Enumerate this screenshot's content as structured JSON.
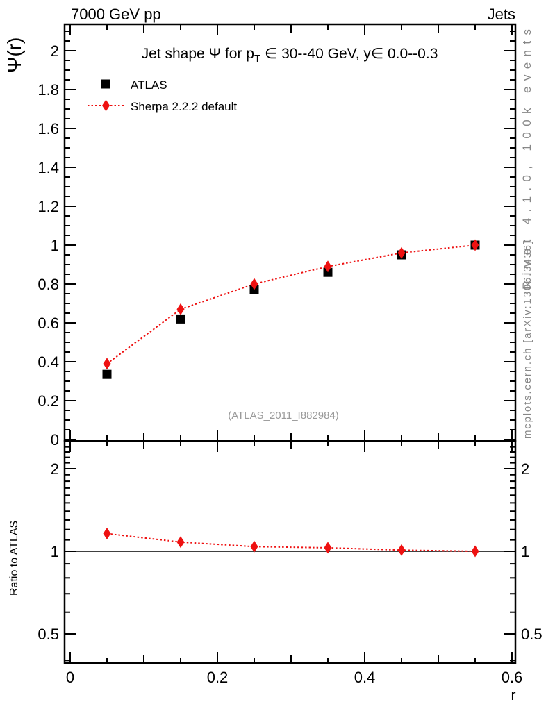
{
  "colors": {
    "red": "#ee1111",
    "black": "#000000",
    "gray_text": "#878787",
    "watermark": "#9a9a9a",
    "background": "#ffffff"
  },
  "header": {
    "left": "7000 GeV pp",
    "right": "Jets"
  },
  "side_notes": {
    "top_right": "Rivet 4.1.0,  100k events",
    "bottom_right": "mcplots.cern.ch [arXiv:1306.3436]"
  },
  "main_panel": {
    "ylabel": "Ψ(r)",
    "title_pre": "Jet shape Ψ for p",
    "title_sub": "T",
    "title_post": " ∈ 30--40 GeV, y∈ 0.0--0.3",
    "legend": [
      {
        "label": "ATLAS",
        "marker": "black-square"
      },
      {
        "label": "Sherpa 2.2.2 default",
        "marker": "red-diamond-dotted-line"
      }
    ],
    "watermark": "(ATLAS_2011_I882984)"
  },
  "ratio_panel": {
    "ylabel": "Ratio to ATLAS"
  },
  "xaxis": {
    "label": "r"
  },
  "chart_data": [
    {
      "type": "scatter",
      "title": "Jet shape Psi for pT in 30--40 GeV, y in 0.0--0.3",
      "xlabel": "r",
      "ylabel": "Psi(r)",
      "xlim": [
        -0.008,
        0.605
      ],
      "ylim": [
        0,
        2.14
      ],
      "grid": false,
      "legend_position": "top-left",
      "x": [
        0.05,
        0.15,
        0.25,
        0.35,
        0.45,
        0.55
      ],
      "xticks": {
        "values": [
          0,
          0.2,
          0.4,
          0.6
        ],
        "labels": [
          "0",
          "0.2",
          "0.4",
          "0.6"
        ],
        "minor_step": 0.05
      },
      "yticks": {
        "values": [
          0,
          0.2,
          0.4,
          0.6,
          0.8,
          1.0,
          1.2,
          1.4,
          1.6,
          1.8,
          2.0
        ],
        "labels": [
          "0",
          "0.2",
          "0.4",
          "0.6",
          "0.8",
          "1",
          "1.2",
          "1.4",
          "1.6",
          "1.8",
          "2"
        ],
        "minor_step": 0.05
      },
      "series": [
        {
          "name": "ATLAS",
          "marker": "square",
          "color": "#000000",
          "line": "none",
          "values": [
            0.335,
            0.62,
            0.77,
            0.86,
            0.95,
            1.0
          ],
          "errors": [
            0.012,
            0.009,
            0.007,
            0.005,
            0.004,
            0.003
          ]
        },
        {
          "name": "Sherpa 2.2.2 default",
          "marker": "diamond",
          "color": "#ee1111",
          "line": "dotted",
          "values": [
            0.39,
            0.67,
            0.8,
            0.89,
            0.96,
            1.0
          ],
          "errors": [
            0.012,
            0.008,
            0.006,
            0.005,
            0.004,
            0.003
          ]
        }
      ]
    },
    {
      "type": "scatter",
      "ylabel": "Ratio to ATLAS",
      "yscale": "log",
      "ylim": [
        0.39,
        2.53
      ],
      "reference_line_y": 1,
      "x": [
        0.05,
        0.15,
        0.25,
        0.35,
        0.45,
        0.55
      ],
      "yticks": {
        "values": [
          0.5,
          1,
          2
        ],
        "labels": [
          "0.5",
          "1",
          "2"
        ],
        "minor": [
          0.4,
          0.6,
          0.7,
          0.8,
          0.9,
          1.1,
          1.2,
          1.3,
          1.4,
          1.5,
          1.6,
          1.7,
          1.8,
          1.9,
          2.1,
          2.2,
          2.3,
          2.4,
          2.5
        ]
      },
      "series": [
        {
          "name": "Sherpa 2.2.2 default / ATLAS",
          "marker": "diamond",
          "color": "#ee1111",
          "line": "dotted",
          "values": [
            1.16,
            1.08,
            1.04,
            1.03,
            1.01,
            1.0
          ],
          "errors": [
            0.035,
            0.014,
            0.01,
            0.008,
            0.005,
            0.004
          ]
        }
      ]
    }
  ]
}
